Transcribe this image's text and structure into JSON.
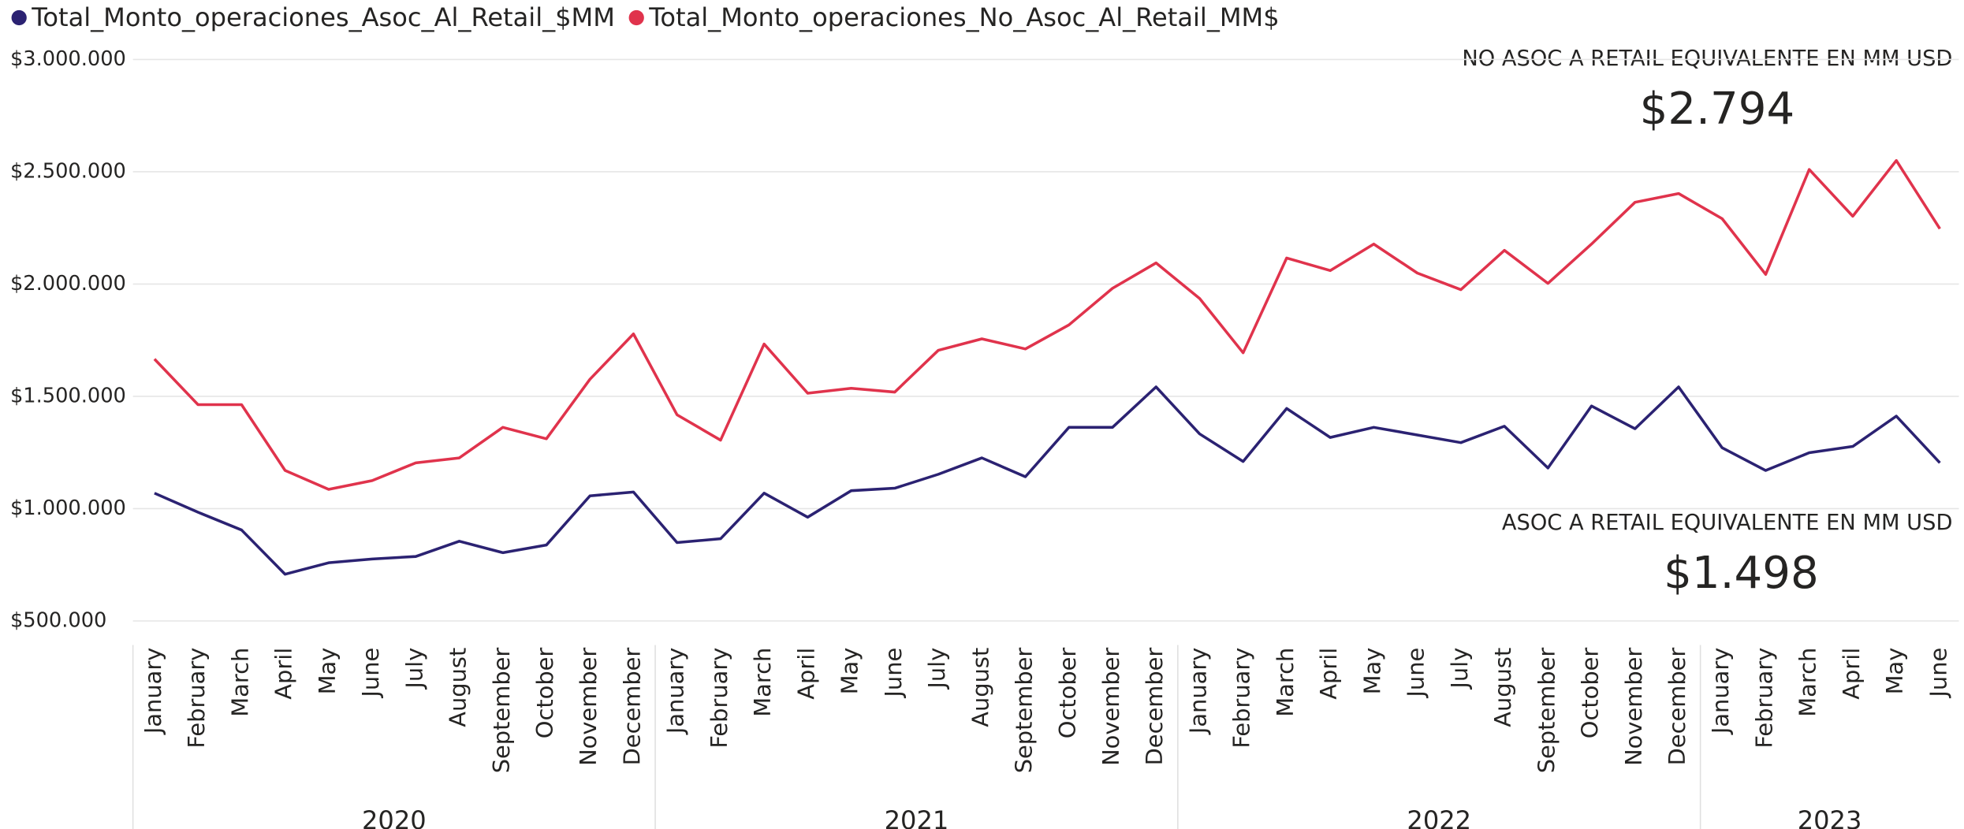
{
  "chart_data": {
    "type": "line",
    "categories": [
      "January",
      "February",
      "March",
      "April",
      "May",
      "June",
      "July",
      "August",
      "September",
      "October",
      "November",
      "December",
      "January",
      "February",
      "March",
      "April",
      "May",
      "June",
      "July",
      "August",
      "September",
      "October",
      "November",
      "December",
      "January",
      "February",
      "March",
      "April",
      "May",
      "June",
      "July",
      "August",
      "September",
      "October",
      "November",
      "December",
      "January",
      "February",
      "March",
      "April",
      "May",
      "June"
    ],
    "years": [
      "2020",
      "2021",
      "2022",
      "2023"
    ],
    "series": [
      {
        "name": "Total_Monto_operaciones_Asoc_Al_Retail_$MM",
        "color": "#2b2272",
        "values": [
          1069000,
          984000,
          905000,
          708000,
          759000,
          776000,
          787000,
          855000,
          804000,
          838000,
          1057000,
          1074000,
          849000,
          866000,
          1069000,
          962000,
          1080000,
          1091000,
          1153000,
          1226000,
          1142000,
          1362000,
          1362000,
          1542000,
          1333000,
          1210000,
          1446000,
          1317000,
          1362000,
          1328000,
          1294000,
          1367000,
          1181000,
          1457000,
          1356000,
          1542000,
          1271000,
          1170000,
          1249000,
          1277000,
          1412000,
          1204000
        ]
      },
      {
        "name": "Total_Monto_operaciones_No_Asoc_Al_Retail_MM$",
        "color": "#e0334c",
        "values": [
          1666000,
          1463000,
          1463000,
          1170000,
          1086000,
          1125000,
          1204000,
          1226000,
          1362000,
          1311000,
          1576000,
          1778000,
          1418000,
          1305000,
          1733000,
          1514000,
          1536000,
          1519000,
          1705000,
          1756000,
          1711000,
          1818000,
          1981000,
          2094000,
          1936000,
          1694000,
          2116000,
          2060000,
          2178000,
          2049000,
          1975000,
          2150000,
          2003000,
          2178000,
          2364000,
          2403000,
          2291000,
          2043000,
          2510000,
          2302000,
          2550000,
          2246000
        ]
      }
    ],
    "ylim": [
      500000,
      3000000
    ],
    "yticks": [
      {
        "value": 500000,
        "label": "$500.000"
      },
      {
        "value": 1000000,
        "label": "$1.000.000"
      },
      {
        "value": 1500000,
        "label": "$1.500.000"
      },
      {
        "value": 2000000,
        "label": "$2.000.000"
      },
      {
        "value": 2500000,
        "label": "$2.500.000"
      },
      {
        "value": 3000000,
        "label": "$3.000.000"
      }
    ],
    "grid": true,
    "annotations": [
      {
        "label": "NO ASOC A RETAIL EQUIVALENTE EN MM USD",
        "value": "$2.794"
      },
      {
        "label": "ASOC A RETAIL EQUIVALENTE EN MM USD",
        "value": "$1.498"
      }
    ]
  }
}
